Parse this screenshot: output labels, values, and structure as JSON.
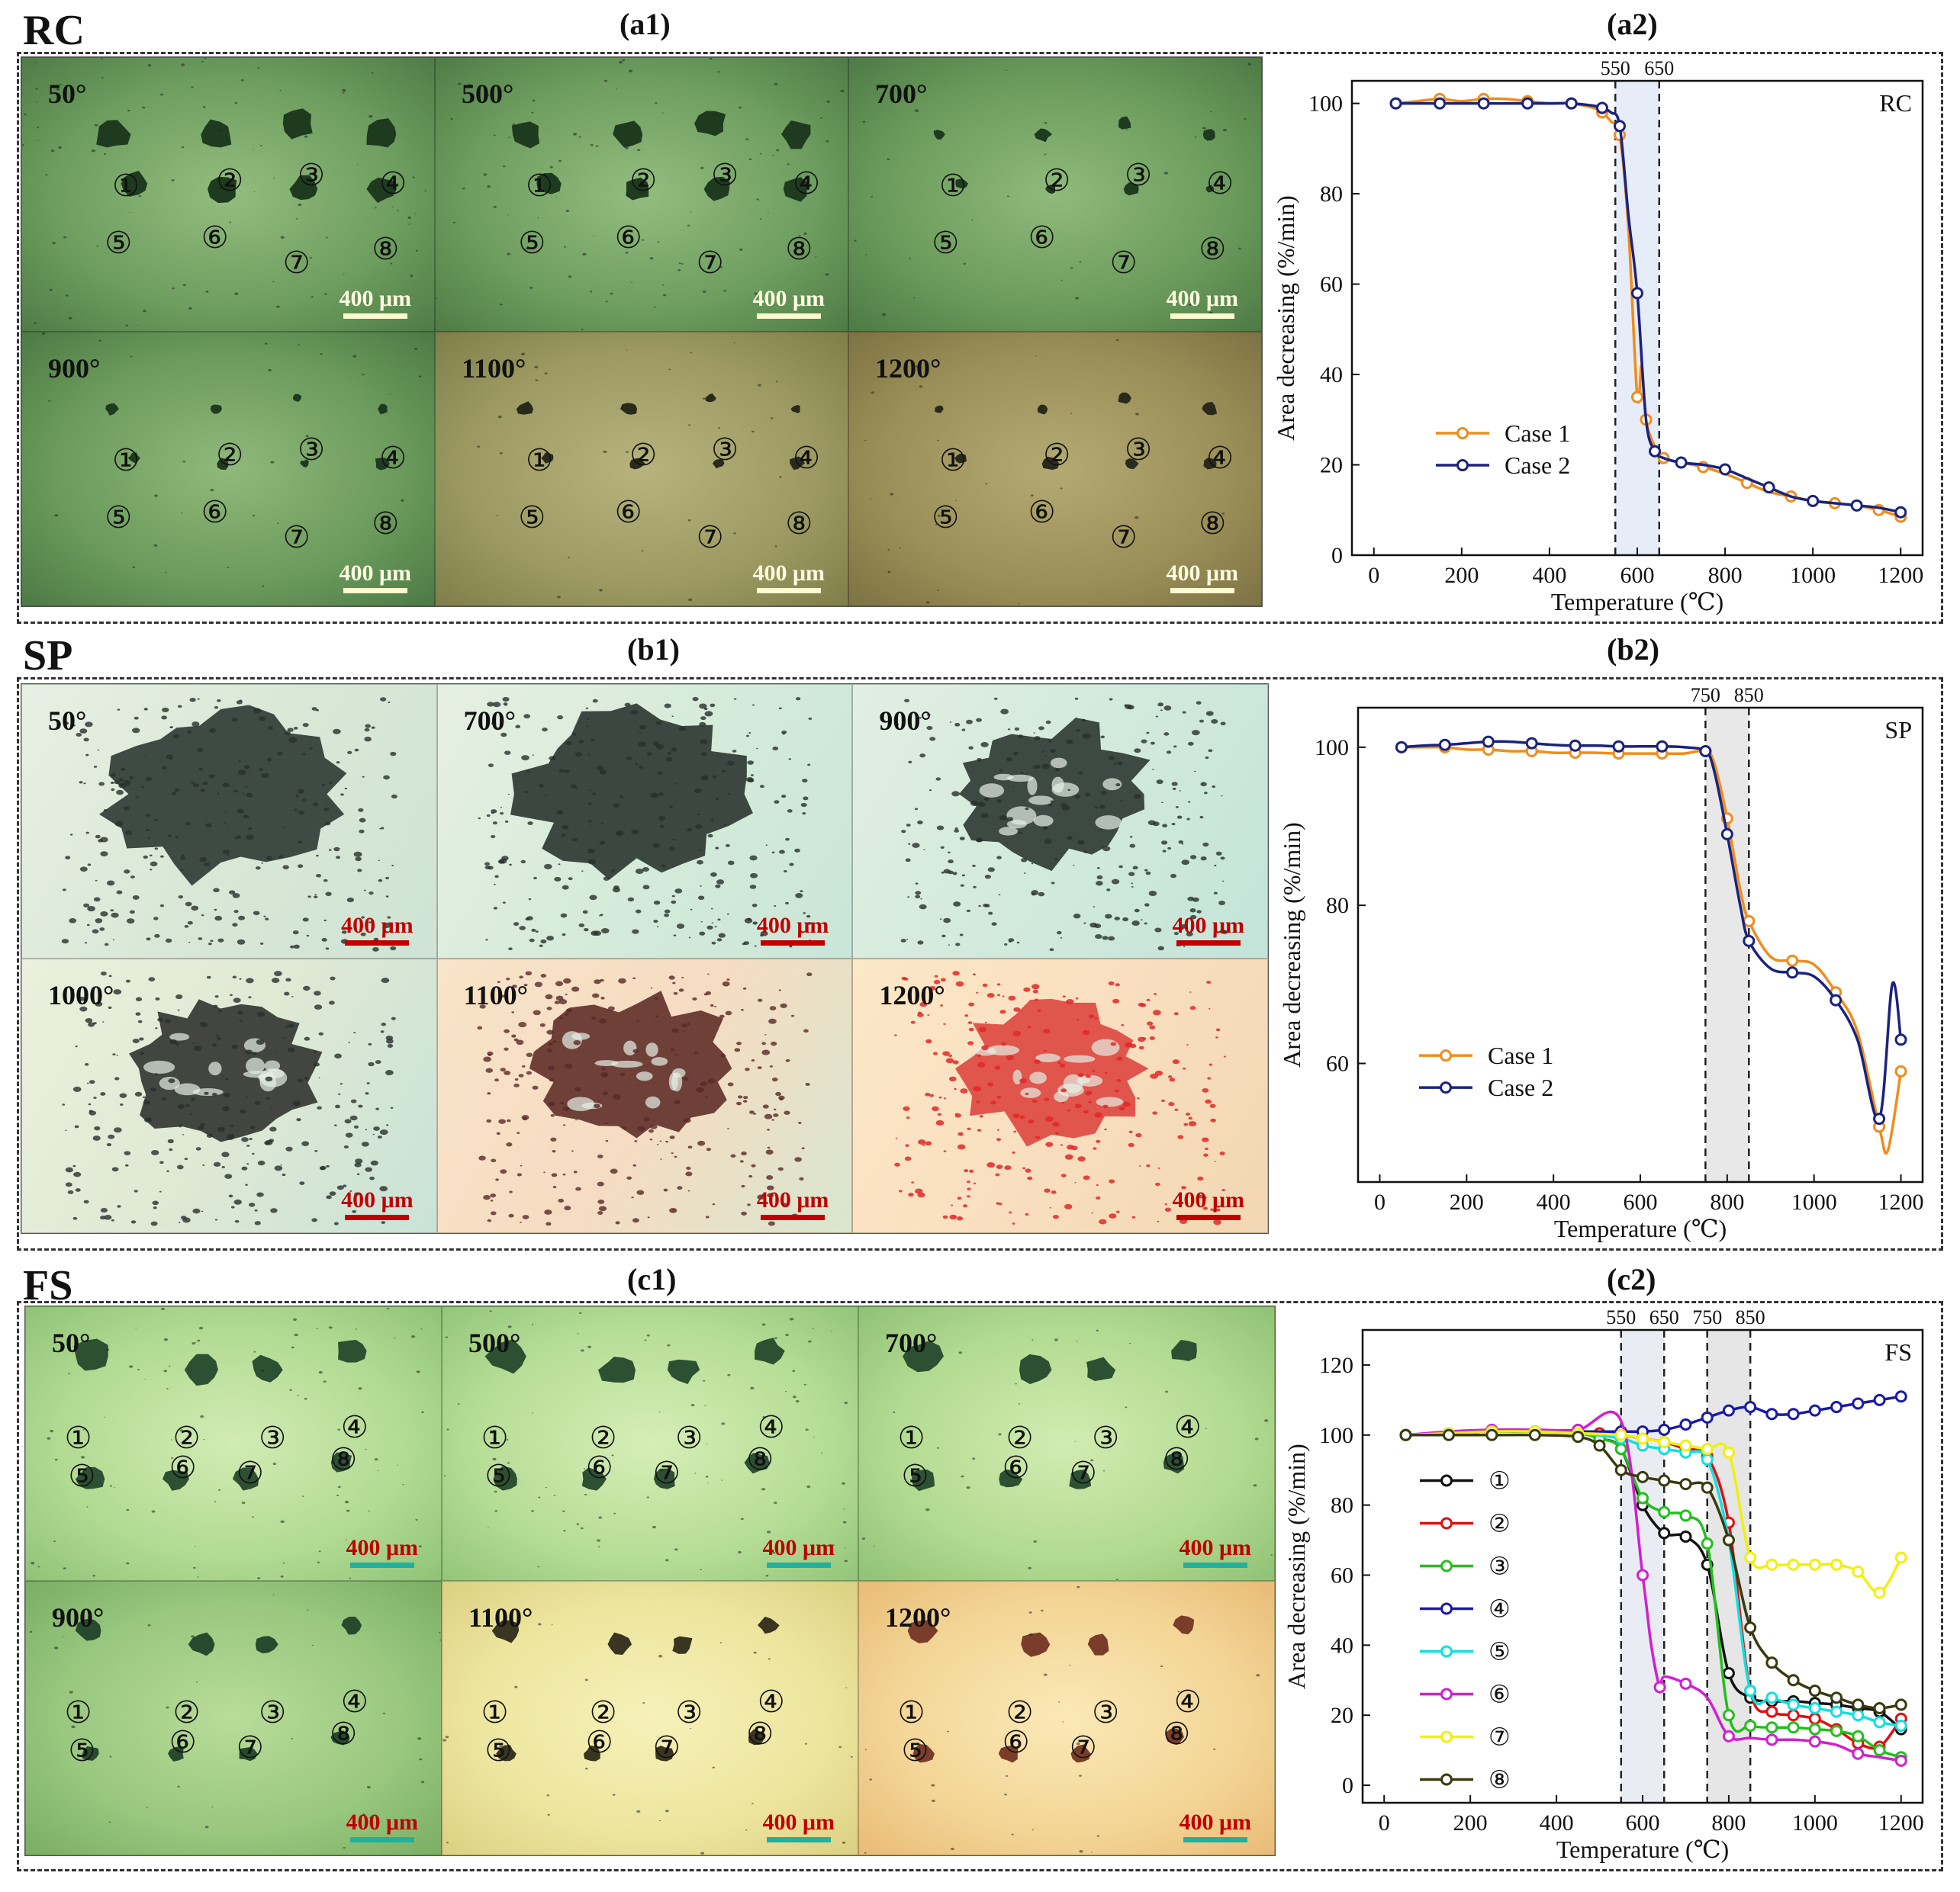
{
  "figure": {
    "sections": [
      {
        "id": "a",
        "label": "RC",
        "micrograph_panel": "(a1)",
        "chart_panel": "(a2)",
        "scale_bar": "400 μm",
        "micrographs": [
          {
            "temp": "50°",
            "numbers": [
              "①",
              "②",
              "③",
              "④",
              "⑤",
              "⑥",
              "⑦",
              "⑧"
            ]
          },
          {
            "temp": "500°",
            "numbers": [
              "①",
              "②",
              "③",
              "④",
              "⑤",
              "⑥",
              "⑦",
              "⑧"
            ]
          },
          {
            "temp": "700°",
            "numbers": [
              "①",
              "②",
              "③",
              "④",
              "⑤",
              "⑥",
              "⑦",
              "⑧"
            ]
          },
          {
            "temp": "900°",
            "numbers": [
              "①",
              "②",
              "③",
              "④",
              "⑤",
              "⑥",
              "⑦",
              "⑧"
            ]
          },
          {
            "temp": "1100°",
            "numbers": [
              "①",
              "②",
              "③",
              "④",
              "⑤",
              "⑥",
              "⑦",
              "⑧"
            ]
          },
          {
            "temp": "1200°",
            "numbers": [
              "①",
              "②",
              "③",
              "④",
              "⑤",
              "⑥",
              "⑦",
              "⑧"
            ]
          }
        ]
      },
      {
        "id": "b",
        "label": "SP",
        "micrograph_panel": "(b1)",
        "chart_panel": "(b2)",
        "scale_bar": "400 μm",
        "micrographs": [
          {
            "temp": "50°"
          },
          {
            "temp": "700°"
          },
          {
            "temp": "900°"
          },
          {
            "temp": "1000°"
          },
          {
            "temp": "1100°"
          },
          {
            "temp": "1200°"
          }
        ]
      },
      {
        "id": "c",
        "label": "FS",
        "micrograph_panel": "(c1)",
        "chart_panel": "(c2)",
        "scale_bar": "400 μm",
        "micrographs": [
          {
            "temp": "50°",
            "numbers": [
              "①",
              "②",
              "③",
              "④",
              "⑤",
              "⑥",
              "⑦",
              "⑧"
            ]
          },
          {
            "temp": "500°",
            "numbers": [
              "①",
              "②",
              "③",
              "④",
              "⑤",
              "⑥",
              "⑦",
              "⑧"
            ]
          },
          {
            "temp": "700°",
            "numbers": [
              "①",
              "②",
              "③",
              "④",
              "⑤",
              "⑥",
              "⑦",
              "⑧"
            ]
          },
          {
            "temp": "900°",
            "numbers": [
              "①",
              "②",
              "③",
              "④",
              "⑤",
              "⑥",
              "⑦",
              "⑧"
            ]
          },
          {
            "temp": "1100°",
            "numbers": [
              "①",
              "②",
              "③",
              "④",
              "⑤",
              "⑥",
              "⑦",
              "⑧"
            ]
          },
          {
            "temp": "1200°",
            "numbers": [
              "①",
              "②",
              "③",
              "④",
              "⑤",
              "⑥",
              "⑦",
              "⑧"
            ]
          }
        ]
      }
    ]
  },
  "chart_data": [
    {
      "type": "line",
      "tag": "RC",
      "xlabel": "Temperature (℃)",
      "ylabel": "Area decreasing (%/min)",
      "xlim": [
        -50,
        1250
      ],
      "ylim": [
        0,
        105
      ],
      "xticks": [
        0,
        200,
        400,
        600,
        800,
        1000,
        1200
      ],
      "yticks": [
        0,
        20,
        40,
        60,
        80,
        100
      ],
      "bands": [
        {
          "from": 550,
          "to": 650,
          "labels": [
            "550",
            "650"
          ],
          "color": "#e6ecf8"
        }
      ],
      "legend": "center-left",
      "series": [
        {
          "name": "Case 1",
          "color": "#f08c1c",
          "x": [
            50,
            100,
            150,
            200,
            250,
            300,
            350,
            400,
            450,
            500,
            520,
            540,
            560,
            580,
            600,
            610,
            620,
            640,
            660,
            700,
            750,
            800,
            850,
            900,
            950,
            1000,
            1050,
            1100,
            1150,
            1200
          ],
          "y": [
            100,
            100.5,
            101,
            100.5,
            101,
            101,
            100.5,
            100,
            100,
            99,
            98,
            96,
            93,
            72,
            35,
            42,
            30,
            24,
            21.5,
            20.5,
            19.5,
            18,
            16,
            14,
            13,
            12,
            11.5,
            11,
            10,
            8.5
          ]
        },
        {
          "name": "Case 2",
          "color": "#1a237e",
          "x": [
            50,
            100,
            150,
            200,
            250,
            300,
            350,
            400,
            450,
            500,
            520,
            540,
            560,
            580,
            600,
            620,
            640,
            660,
            700,
            750,
            800,
            850,
            900,
            950,
            1000,
            1050,
            1100,
            1150,
            1200
          ],
          "y": [
            100,
            100,
            100,
            100,
            100,
            100,
            100,
            100,
            100,
            99.5,
            99,
            98,
            95,
            75,
            58,
            30,
            23,
            21.5,
            20.5,
            20,
            19,
            17,
            15,
            13,
            12,
            11.5,
            11,
            10.5,
            9.5
          ]
        }
      ]
    },
    {
      "type": "line",
      "tag": "SP",
      "xlabel": "Temperature (℃)",
      "ylabel": "Area decreasing (%/min)",
      "xlim": [
        -50,
        1250
      ],
      "ylim": [
        45,
        105
      ],
      "xticks": [
        0,
        200,
        400,
        600,
        800,
        1000,
        1200
      ],
      "yticks": [
        60,
        80,
        100
      ],
      "bands": [
        {
          "from": 750,
          "to": 850,
          "labels": [
            "750",
            "850"
          ],
          "color": "#e8e8e8"
        }
      ],
      "legend": "bottom-left",
      "series": [
        {
          "name": "Case 1",
          "color": "#f08c1c",
          "x": [
            50,
            100,
            150,
            200,
            250,
            300,
            350,
            400,
            450,
            500,
            550,
            600,
            650,
            700,
            750,
            770,
            800,
            830,
            850,
            900,
            950,
            1000,
            1050,
            1100,
            1150,
            1170,
            1200
          ],
          "y": [
            100,
            100,
            100,
            99.7,
            99.7,
            99.5,
            99.5,
            99.3,
            99.3,
            99.3,
            99.2,
            99.2,
            99.2,
            99.2,
            99.5,
            98,
            91,
            82,
            78,
            73.5,
            73,
            72.5,
            69,
            64,
            52,
            49,
            59
          ]
        },
        {
          "name": "Case 2",
          "color": "#1a237e",
          "x": [
            50,
            100,
            150,
            200,
            250,
            300,
            350,
            400,
            450,
            500,
            550,
            600,
            650,
            700,
            750,
            770,
            800,
            830,
            850,
            900,
            950,
            1000,
            1050,
            1100,
            1150,
            1180,
            1200
          ],
          "y": [
            100,
            100.2,
            100.3,
            100.5,
            100.7,
            100.7,
            100.5,
            100.3,
            100.2,
            100.2,
            100.1,
            100.1,
            100.1,
            100,
            99.5,
            97,
            89,
            80,
            75.5,
            72,
            71.5,
            71,
            68,
            63,
            53,
            70,
            63
          ]
        }
      ]
    },
    {
      "type": "line",
      "tag": "FS",
      "xlabel": "Temperature (℃)",
      "ylabel": "Area decreasing (%/min)",
      "xlim": [
        -50,
        1250
      ],
      "ylim": [
        -5,
        130
      ],
      "xticks": [
        0,
        200,
        400,
        600,
        800,
        1000,
        1200
      ],
      "yticks": [
        0,
        20,
        40,
        60,
        80,
        100,
        120
      ],
      "bands": [
        {
          "from": 550,
          "to": 650,
          "labels": [
            "550",
            "650"
          ],
          "color": "#eaecf4"
        },
        {
          "from": 750,
          "to": 850,
          "labels": [
            "750",
            "850"
          ],
          "color": "#e6e6e6"
        }
      ],
      "legend": "left",
      "series": [
        {
          "name": "①",
          "color": "#111111",
          "x": [
            50,
            150,
            250,
            350,
            450,
            500,
            550,
            600,
            650,
            700,
            750,
            800,
            850,
            900,
            950,
            1000,
            1050,
            1100,
            1150,
            1200
          ],
          "y": [
            100,
            100.5,
            101,
            101,
            100.5,
            99,
            96,
            80,
            72,
            71,
            63,
            32,
            25,
            24,
            24,
            23.5,
            23,
            22,
            21,
            16
          ]
        },
        {
          "name": "②",
          "color": "#e01010",
          "x": [
            50,
            150,
            250,
            350,
            450,
            500,
            550,
            600,
            650,
            700,
            750,
            800,
            850,
            900,
            950,
            1000,
            1050,
            1100,
            1150,
            1200
          ],
          "y": [
            100,
            100.5,
            101,
            101,
            101,
            100.5,
            100,
            99,
            98,
            96,
            94,
            75,
            27,
            21,
            20,
            19,
            16,
            12,
            11,
            19
          ]
        },
        {
          "name": "③",
          "color": "#22c01c",
          "x": [
            50,
            150,
            250,
            350,
            450,
            500,
            550,
            600,
            650,
            700,
            750,
            800,
            850,
            900,
            950,
            1000,
            1050,
            1100,
            1150,
            1200
          ],
          "y": [
            100,
            100.5,
            101,
            101,
            100.5,
            99,
            96,
            82,
            78,
            77,
            69,
            20,
            17,
            16.5,
            16.5,
            16,
            15.5,
            14,
            10,
            8
          ]
        },
        {
          "name": "④",
          "color": "#1a1aa8",
          "x": [
            50,
            150,
            250,
            350,
            450,
            550,
            600,
            650,
            700,
            750,
            800,
            850,
            900,
            950,
            1000,
            1050,
            1100,
            1150,
            1200
          ],
          "y": [
            100,
            100.5,
            101,
            101,
            101,
            101,
            101,
            101.5,
            103,
            105,
            107,
            108,
            106,
            106,
            107,
            108,
            109,
            110,
            111
          ]
        },
        {
          "name": "⑤",
          "color": "#10e0e0",
          "x": [
            50,
            150,
            250,
            350,
            450,
            550,
            600,
            650,
            700,
            750,
            800,
            850,
            900,
            950,
            1000,
            1050,
            1100,
            1150,
            1200
          ],
          "y": [
            100,
            100.5,
            101,
            101,
            100.5,
            99,
            97,
            96,
            95,
            93,
            70,
            27,
            25,
            23,
            22,
            21,
            20,
            18,
            17
          ]
        },
        {
          "name": "⑥",
          "color": "#d020d0",
          "x": [
            50,
            150,
            250,
            350,
            450,
            550,
            600,
            620,
            640,
            650,
            700,
            750,
            800,
            850,
            900,
            950,
            1000,
            1050,
            1100,
            1150,
            1200
          ],
          "y": [
            100,
            101,
            101.5,
            101.5,
            101.5,
            104,
            60,
            40,
            28,
            31,
            29,
            25,
            14,
            13.5,
            13,
            13,
            12.5,
            11.5,
            9,
            8,
            7
          ]
        },
        {
          "name": "⑦",
          "color": "#f0f010",
          "x": [
            50,
            150,
            250,
            350,
            450,
            550,
            600,
            650,
            700,
            750,
            800,
            850,
            900,
            950,
            1000,
            1050,
            1100,
            1150,
            1200
          ],
          "y": [
            100,
            100.5,
            101,
            101,
            100.5,
            100,
            99,
            98,
            97,
            96,
            95,
            65,
            63,
            63,
            63,
            63,
            61,
            55,
            65
          ]
        },
        {
          "name": "⑧",
          "color": "#3a3a10",
          "x": [
            50,
            150,
            250,
            350,
            450,
            500,
            550,
            600,
            650,
            700,
            750,
            800,
            850,
            900,
            950,
            1000,
            1050,
            1100,
            1150,
            1200
          ],
          "y": [
            100,
            100,
            100,
            100,
            99.5,
            97,
            90,
            88,
            87,
            86,
            85,
            70,
            45,
            35,
            30,
            27,
            25,
            23,
            22,
            23
          ]
        }
      ]
    }
  ]
}
